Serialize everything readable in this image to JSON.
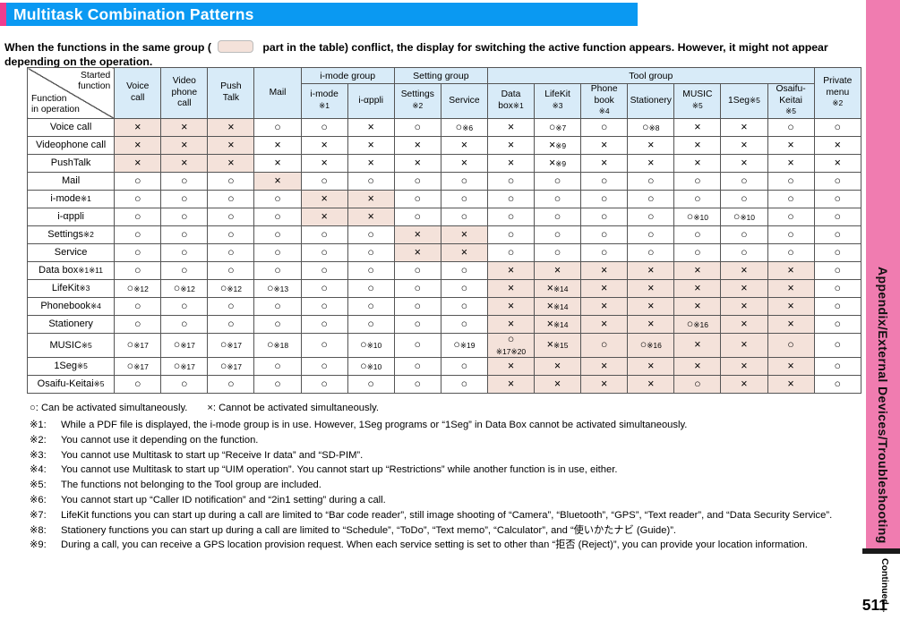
{
  "page": {
    "title": "Multitask Combination Patterns",
    "intro_part1": "When the functions in the same group (",
    "intro_part2": " part in the table) conflict, the display for switching the active function appears. However, it might not appear depending on the operation.",
    "page_number": "511",
    "sidebar_label": "Appendix/External Devices/Troubleshooting",
    "continued_label": "Continued",
    "continued_arrow": "→"
  },
  "table": {
    "corner_top": "Started\nfunction",
    "corner_bottom": "Function\nin operation",
    "groups": [
      {
        "label": "i-mode group",
        "start": 4,
        "end": 5
      },
      {
        "label": "Setting group",
        "start": 6,
        "end": 7
      },
      {
        "label": "Tool group",
        "start": 8,
        "end": 14
      }
    ],
    "columns": [
      "Voice\ncall",
      "Video\nphone\ncall",
      "Push\nTalk",
      "Mail",
      "i-mode\n※1",
      "i-αppli",
      "Settings\n※2",
      "Service",
      "Data\nbox※1",
      "LifeKit\n※3",
      "Phone\nbook\n※4",
      "Stationery",
      "MUSIC\n※5",
      "1Seg※5",
      "Osaifu-\nKeitai\n※5",
      "Private\nmenu\n※2"
    ],
    "rows": [
      {
        "label": "Voice call",
        "cells": [
          "×",
          "×",
          "×",
          "○",
          "○",
          "×",
          "○",
          "○※6",
          "×",
          "○※7",
          "○",
          "○※8",
          "×",
          "×",
          "○",
          "○"
        ]
      },
      {
        "label": "Videophone call",
        "cells": [
          "×",
          "×",
          "×",
          "×",
          "×",
          "×",
          "×",
          "×",
          "×",
          "×※9",
          "×",
          "×",
          "×",
          "×",
          "×",
          "×"
        ]
      },
      {
        "label": "PushTalk",
        "cells": [
          "×",
          "×",
          "×",
          "×",
          "×",
          "×",
          "×",
          "×",
          "×",
          "×※9",
          "×",
          "×",
          "×",
          "×",
          "×",
          "×"
        ]
      },
      {
        "label": "Mail",
        "cells": [
          "○",
          "○",
          "○",
          "×",
          "○",
          "○",
          "○",
          "○",
          "○",
          "○",
          "○",
          "○",
          "○",
          "○",
          "○",
          "○"
        ]
      },
      {
        "label": "i-mode※1",
        "cells": [
          "○",
          "○",
          "○",
          "○",
          "×",
          "×",
          "○",
          "○",
          "○",
          "○",
          "○",
          "○",
          "○",
          "○",
          "○",
          "○"
        ]
      },
      {
        "label": "i-αppli",
        "cells": [
          "○",
          "○",
          "○",
          "○",
          "×",
          "×",
          "○",
          "○",
          "○",
          "○",
          "○",
          "○",
          "○※10",
          "○※10",
          "○",
          "○"
        ]
      },
      {
        "label": "Settings※2",
        "cells": [
          "○",
          "○",
          "○",
          "○",
          "○",
          "○",
          "×",
          "×",
          "○",
          "○",
          "○",
          "○",
          "○",
          "○",
          "○",
          "○"
        ]
      },
      {
        "label": "Service",
        "cells": [
          "○",
          "○",
          "○",
          "○",
          "○",
          "○",
          "×",
          "×",
          "○",
          "○",
          "○",
          "○",
          "○",
          "○",
          "○",
          "○"
        ]
      },
      {
        "label": "Data box※1※11",
        "cells": [
          "○",
          "○",
          "○",
          "○",
          "○",
          "○",
          "○",
          "○",
          "×",
          "×",
          "×",
          "×",
          "×",
          "×",
          "×",
          "○"
        ]
      },
      {
        "label": "LifeKit※3",
        "cells": [
          "○※12",
          "○※12",
          "○※12",
          "○※13",
          "○",
          "○",
          "○",
          "○",
          "×",
          "×※14",
          "×",
          "×",
          "×",
          "×",
          "×",
          "○"
        ]
      },
      {
        "label": "Phonebook※4",
        "cells": [
          "○",
          "○",
          "○",
          "○",
          "○",
          "○",
          "○",
          "○",
          "×",
          "×※14",
          "×",
          "×",
          "×",
          "×",
          "×",
          "○"
        ]
      },
      {
        "label": "Stationery",
        "cells": [
          "○",
          "○",
          "○",
          "○",
          "○",
          "○",
          "○",
          "○",
          "×",
          "×※14",
          "×",
          "×",
          "○※16",
          "×",
          "×",
          "○"
        ]
      },
      {
        "label": "MUSIC※5",
        "cells": [
          "○※17",
          "○※17",
          "○※17",
          "○※18",
          "○",
          "○※10",
          "○",
          "○※19",
          "○\n※17※20",
          "×※15",
          "○",
          "○※16",
          "×",
          "×",
          "○",
          "○"
        ]
      },
      {
        "label": "1Seg※5",
        "cells": [
          "○※17",
          "○※17",
          "○※17",
          "○",
          "○",
          "○※10",
          "○",
          "○",
          "×",
          "×",
          "×",
          "×",
          "×",
          "×",
          "×",
          "○"
        ]
      },
      {
        "label": "Osaifu-Keitai※5",
        "cells": [
          "○",
          "○",
          "○",
          "○",
          "○",
          "○",
          "○",
          "○",
          "×",
          "×",
          "×",
          "×",
          "○",
          "×",
          "×",
          "○"
        ]
      }
    ],
    "shaded_blocks": [
      {
        "rows": [
          0,
          2
        ],
        "cols": [
          0,
          2
        ]
      },
      {
        "rows": [
          3,
          3
        ],
        "cols": [
          3,
          3
        ]
      },
      {
        "rows": [
          4,
          5
        ],
        "cols": [
          4,
          5
        ]
      },
      {
        "rows": [
          6,
          7
        ],
        "cols": [
          6,
          7
        ]
      },
      {
        "rows": [
          8,
          14
        ],
        "cols": [
          8,
          14
        ]
      }
    ]
  },
  "legend": {
    "can": "○: Can be activated simultaneously.",
    "cannot": "×: Cannot be activated simultaneously."
  },
  "footnotes": [
    {
      "label": "※1:",
      "text": "While a PDF file is displayed, the i-mode group is in use. However, 1Seg programs or “1Seg” in Data Box cannot be activated simultaneously."
    },
    {
      "label": "※2:",
      "text": "You cannot use it depending on the function."
    },
    {
      "label": "※3:",
      "text": "You cannot use Multitask to start up “Receive Ir data” and “SD-PIM”."
    },
    {
      "label": "※4:",
      "text": "You cannot use Multitask to start up “UIM operation”. You cannot start up “Restrictions” while another function is in use, either."
    },
    {
      "label": "※5:",
      "text": "The functions not belonging to the Tool group are included."
    },
    {
      "label": "※6:",
      "text": "You cannot start up “Caller ID notification” and “2in1 setting” during a call."
    },
    {
      "label": "※7:",
      "text": "LifeKit functions you can start up during a call are limited to “Bar code reader”, still image shooting of “Camera”, “Bluetooth”, “GPS”, “Text reader”, and “Data Security Service”."
    },
    {
      "label": "※8:",
      "text": "Stationery functions you can start up during a call are limited to “Schedule”, “ToDo”, “Text memo”, “Calculator”, and “使いかたナビ (Guide)”."
    },
    {
      "label": "※9:",
      "text": "During a call, you can receive a GPS location provision request. When each service setting is set to other than “拒否 (Reject)”, you can provide your location information."
    }
  ],
  "colors": {
    "title_bar": "#0a99f2",
    "accent_pink": "#ee3d8f",
    "sidebar_pink": "#f07cb0",
    "header_blue": "#d8ebf8",
    "shaded_cell": "#f4e2da"
  }
}
